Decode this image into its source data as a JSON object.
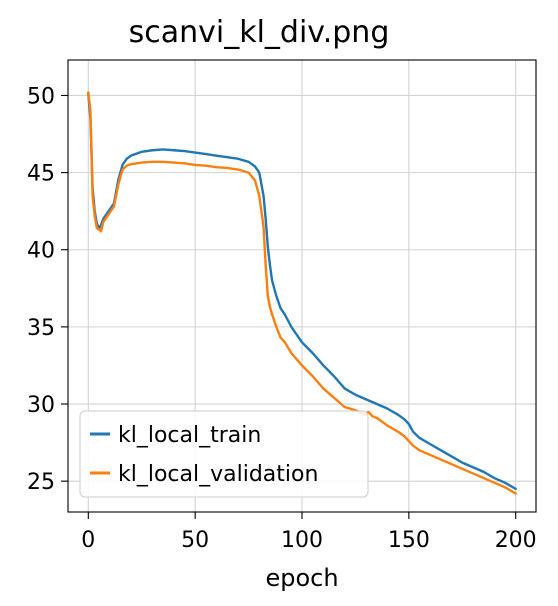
{
  "chart_data": {
    "type": "line",
    "title": "scanvi_kl_div.png",
    "xlabel": "epoch",
    "ylabel": "",
    "xlim": [
      -9.5,
      209.5
    ],
    "ylim": [
      23,
      52.3
    ],
    "xticks": [
      0,
      50,
      100,
      150,
      200
    ],
    "yticks": [
      25,
      30,
      35,
      40,
      45,
      50
    ],
    "grid": true,
    "legend_position": "lower-left",
    "series": [
      {
        "name": "kl_local_train",
        "color": "#1f77b4",
        "x": [
          0,
          1,
          2,
          3,
          4,
          5,
          6,
          7,
          8,
          9,
          10,
          12,
          14,
          16,
          18,
          20,
          25,
          30,
          35,
          40,
          45,
          50,
          55,
          60,
          65,
          70,
          75,
          78,
          80,
          82,
          83,
          84,
          85,
          86,
          88,
          90,
          92,
          95,
          100,
          105,
          110,
          115,
          120,
          125,
          130,
          135,
          140,
          145,
          148,
          150,
          152,
          155,
          160,
          165,
          170,
          175,
          180,
          185,
          190,
          195,
          200
        ],
        "y": [
          50.1,
          48.5,
          44.0,
          42.5,
          41.7,
          41.4,
          41.6,
          42.0,
          42.2,
          42.4,
          42.6,
          43.0,
          44.5,
          45.5,
          45.9,
          46.1,
          46.35,
          46.45,
          46.5,
          46.45,
          46.4,
          46.3,
          46.2,
          46.1,
          46.0,
          45.9,
          45.7,
          45.4,
          45.0,
          43.5,
          42.0,
          40.2,
          39.0,
          38.0,
          37.0,
          36.2,
          35.8,
          35.0,
          34.0,
          33.3,
          32.5,
          31.8,
          31.0,
          30.6,
          30.3,
          30.0,
          29.7,
          29.3,
          29.0,
          28.7,
          28.2,
          27.8,
          27.4,
          27.0,
          26.6,
          26.2,
          25.9,
          25.6,
          25.2,
          24.9,
          24.5
        ]
      },
      {
        "name": "kl_local_validation",
        "color": "#ff7f0e",
        "x": [
          0,
          1,
          2,
          3,
          4,
          5,
          6,
          7,
          8,
          9,
          10,
          12,
          14,
          16,
          18,
          20,
          25,
          30,
          35,
          40,
          45,
          50,
          55,
          60,
          65,
          70,
          75,
          78,
          80,
          82,
          83,
          84,
          85,
          86,
          88,
          90,
          92,
          95,
          100,
          105,
          110,
          115,
          120,
          125,
          130,
          131,
          133,
          135,
          140,
          145,
          148,
          150,
          152,
          155,
          160,
          165,
          170,
          175,
          180,
          185,
          190,
          195,
          200
        ],
        "y": [
          50.2,
          49.0,
          43.5,
          42.2,
          41.4,
          41.3,
          41.2,
          41.8,
          42.0,
          42.2,
          42.4,
          42.8,
          44.2,
          45.2,
          45.45,
          45.55,
          45.65,
          45.7,
          45.7,
          45.65,
          45.6,
          45.5,
          45.45,
          45.35,
          45.3,
          45.2,
          45.0,
          44.5,
          43.5,
          41.5,
          39.0,
          37.0,
          36.3,
          35.8,
          35.0,
          34.3,
          34.0,
          33.3,
          32.5,
          31.8,
          31.0,
          30.4,
          29.8,
          29.6,
          29.3,
          29.5,
          29.2,
          29.1,
          28.6,
          28.2,
          27.9,
          27.6,
          27.3,
          27.0,
          26.7,
          26.4,
          26.1,
          25.8,
          25.5,
          25.2,
          24.9,
          24.6,
          24.2
        ]
      }
    ]
  }
}
